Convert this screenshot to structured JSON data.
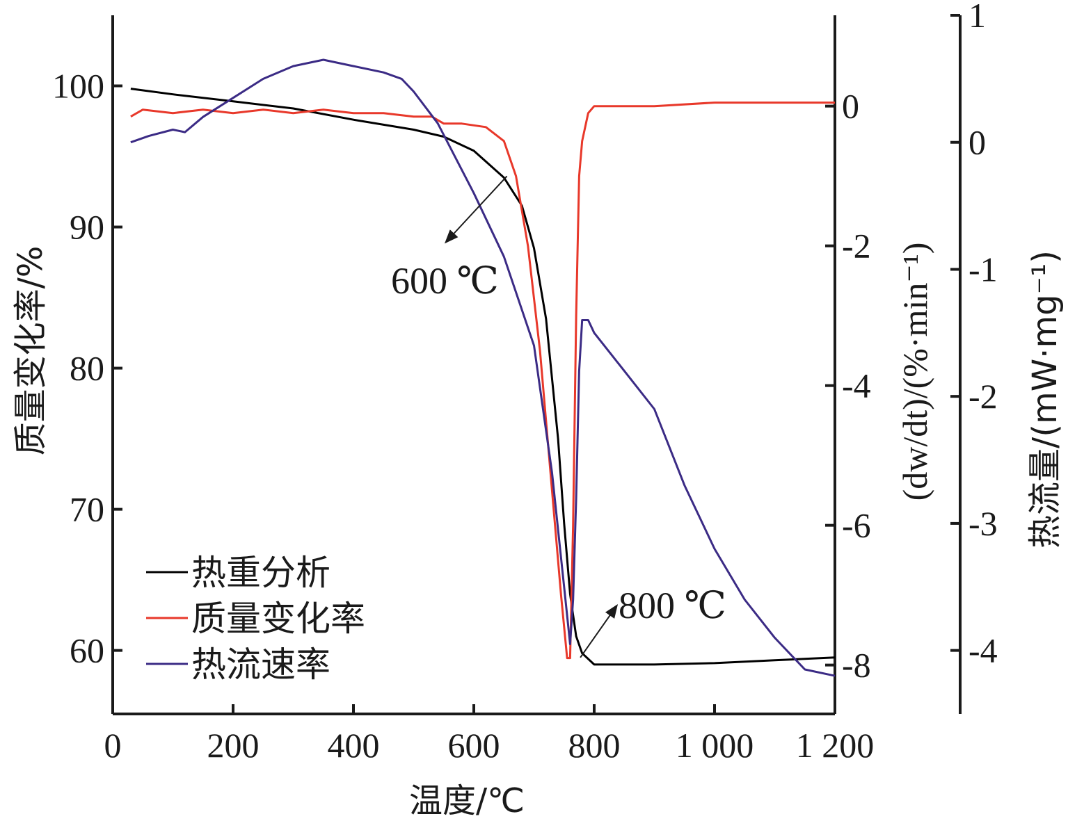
{
  "chart_data": {
    "type": "line",
    "xlabel": "温度/℃",
    "ylabel_left": "质量变化率/%",
    "ylabel_mid": "(dw/dt)/(%·min⁻¹)",
    "ylabel_right": "热流量/(mW·mg⁻¹)",
    "xlim": [
      0,
      1200
    ],
    "ylim_left": [
      55.5,
      105
    ],
    "ylim_mid": [
      -8.7,
      1.3
    ],
    "ylim_right": [
      -4.5,
      1
    ],
    "x_ticks": [
      {
        "value": 0,
        "label": "0"
      },
      {
        "value": 200,
        "label": "200"
      },
      {
        "value": 400,
        "label": "400"
      },
      {
        "value": 600,
        "label": "600"
      },
      {
        "value": 800,
        "label": "800"
      },
      {
        "value": 1000,
        "label": "1 000"
      },
      {
        "value": 1200,
        "label": "1 200"
      }
    ],
    "y_left_ticks": [
      {
        "value": 60,
        "label": "60"
      },
      {
        "value": 70,
        "label": "70"
      },
      {
        "value": 80,
        "label": "80"
      },
      {
        "value": 90,
        "label": "90"
      },
      {
        "value": 100,
        "label": "100"
      }
    ],
    "y_mid_ticks": [
      {
        "value": 0,
        "label": "0"
      },
      {
        "value": -2,
        "label": "-2"
      },
      {
        "value": -4,
        "label": "-4"
      },
      {
        "value": -6,
        "label": "-6"
      },
      {
        "value": -8,
        "label": "-8"
      }
    ],
    "y_right_ticks": [
      {
        "value": 1,
        "label": "1"
      },
      {
        "value": 0,
        "label": "0"
      },
      {
        "value": -1,
        "label": "-1"
      },
      {
        "value": -2,
        "label": "-2"
      },
      {
        "value": -3,
        "label": "-3"
      },
      {
        "value": -4,
        "label": "-4"
      }
    ],
    "series": [
      {
        "name": "热重分析",
        "axis": "left",
        "color": "#000000",
        "x": [
          30,
          100,
          200,
          300,
          400,
          500,
          550,
          600,
          650,
          680,
          700,
          720,
          740,
          750,
          760,
          765,
          770,
          780,
          800,
          900,
          1000,
          1100,
          1200
        ],
        "y": [
          99.8,
          99.4,
          98.9,
          98.4,
          97.6,
          96.9,
          96.4,
          95.4,
          93.5,
          91.5,
          88.5,
          83.5,
          75.0,
          69.0,
          64.0,
          62.5,
          61.0,
          59.8,
          59.0,
          59.0,
          59.1,
          59.3,
          59.5
        ]
      },
      {
        "name": "质量变化率",
        "axis": "mid",
        "color": "#e8382a",
        "x": [
          30,
          50,
          100,
          150,
          200,
          250,
          300,
          350,
          400,
          450,
          500,
          530,
          550,
          580,
          620,
          650,
          670,
          690,
          710,
          730,
          745,
          755,
          760,
          765,
          770,
          775,
          780,
          790,
          800,
          900,
          1000,
          1100,
          1200
        ],
        "y": [
          -0.15,
          -0.05,
          -0.1,
          -0.05,
          -0.1,
          -0.05,
          -0.1,
          -0.05,
          -0.1,
          -0.1,
          -0.15,
          -0.15,
          -0.25,
          -0.25,
          -0.3,
          -0.5,
          -1.0,
          -2.0,
          -3.5,
          -5.5,
          -7.0,
          -7.9,
          -7.9,
          -6.0,
          -3.0,
          -1.0,
          -0.5,
          -0.1,
          0.0,
          0.0,
          0.05,
          0.05,
          0.05
        ]
      },
      {
        "name": "热流速率",
        "axis": "right",
        "color": "#3b2b85",
        "x": [
          30,
          60,
          100,
          120,
          150,
          200,
          250,
          300,
          350,
          400,
          450,
          480,
          500,
          540,
          600,
          650,
          700,
          730,
          750,
          760,
          765,
          770,
          775,
          780,
          790,
          800,
          850,
          900,
          950,
          1000,
          1050,
          1100,
          1150,
          1200
        ],
        "y": [
          0.0,
          0.05,
          0.1,
          0.08,
          0.2,
          0.35,
          0.5,
          0.6,
          0.65,
          0.6,
          0.55,
          0.5,
          0.4,
          0.15,
          -0.4,
          -0.9,
          -1.6,
          -2.6,
          -3.5,
          -3.95,
          -3.6,
          -2.8,
          -1.8,
          -1.4,
          -1.4,
          -1.5,
          -1.8,
          -2.1,
          -2.7,
          -3.2,
          -3.6,
          -3.9,
          -4.15,
          -4.2
        ]
      }
    ],
    "annotations": [
      {
        "text": "600 ℃",
        "series": "热重分析",
        "x": 600
      },
      {
        "text": "800 ℃",
        "series": "热重分析",
        "x": 800
      }
    ],
    "legend": {
      "placement": "bottom-left"
    },
    "grid": false
  }
}
